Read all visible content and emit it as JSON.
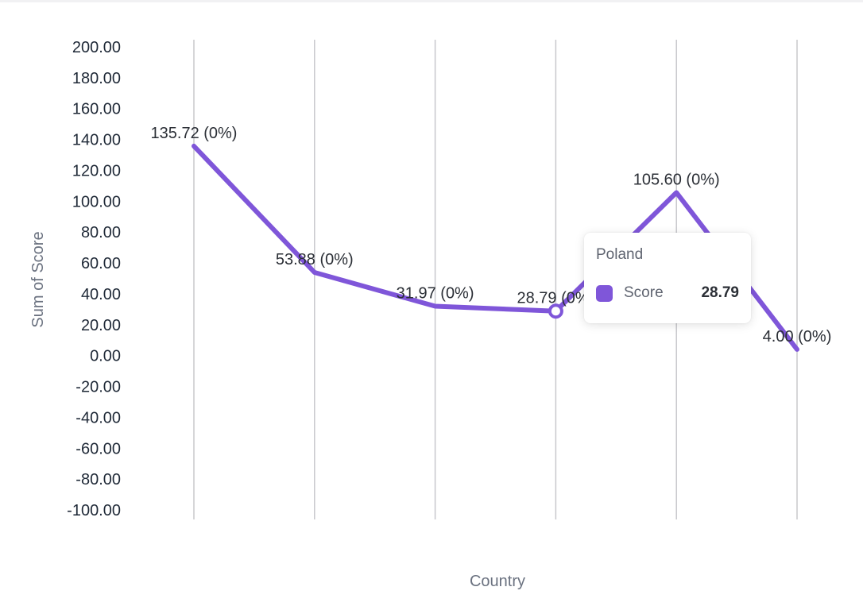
{
  "colors": {
    "series": "#7f56d9",
    "grid": "#c8c8cc",
    "text": "#1f2937",
    "muted": "#6b7280"
  },
  "chart_data": {
    "type": "line",
    "xlabel": "Country",
    "ylabel": "Sum of Score",
    "ylim": [
      -100,
      200
    ],
    "y_ticks": [
      "200.00",
      "180.00",
      "160.00",
      "140.00",
      "120.00",
      "100.00",
      "80.00",
      "60.00",
      "40.00",
      "20.00",
      "0.00",
      "-20.00",
      "-40.00",
      "-60.00",
      "-80.00",
      "-100.00"
    ],
    "grid": "vertical",
    "series": [
      {
        "name": "Score",
        "values": [
          135.72,
          53.88,
          31.97,
          28.79,
          105.6,
          4.0
        ],
        "labels": [
          "135.72 (0%)",
          "53.88 (0%)",
          "31.97 (0%)",
          "28.79 (0%)",
          "105.60 (0%)",
          "4.00 (0%)"
        ]
      }
    ],
    "highlight_index": 3
  },
  "tooltip": {
    "title": "Poland",
    "series_label": "Score",
    "value": "28.79"
  }
}
